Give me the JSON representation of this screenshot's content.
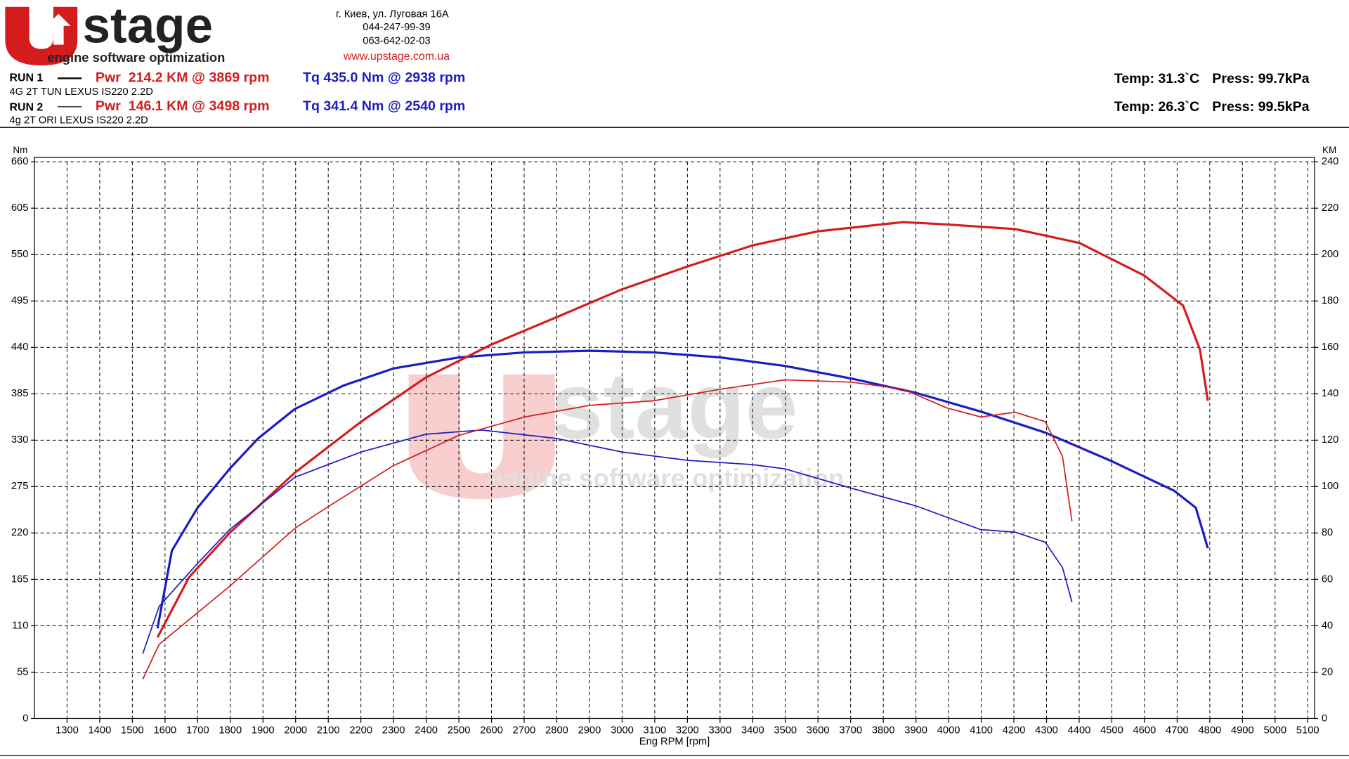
{
  "header": {
    "logo": "stage",
    "tagline": "engine software optimization",
    "address": "г. Киев, ул. Луговая 16А",
    "phone1": "044-247-99-39",
    "phone2": "063-642-02-03",
    "website": "www.upstage.com.ua"
  },
  "runs": [
    {
      "label": "RUN 1",
      "pwr": "Pwr  214.2 KM @ 3869 rpm",
      "tq": "Tq 435.0 Nm @ 2938 rpm",
      "car": "4G 2T TUN LEXUS IS220 2.2D",
      "temp": "Temp: 31.3`C",
      "press": "Press: 99.7kPa"
    },
    {
      "label": "RUN 2",
      "pwr": "Pwr  146.1 KM @ 3498 rpm",
      "tq": "Tq 341.4 Nm @ 2540 rpm",
      "car": "4g 2T ORI LEXUS IS220 2.2D",
      "temp": "Temp: 26.3`C",
      "press": "Press: 99.5kPa"
    }
  ],
  "chart_data": {
    "type": "line",
    "x_label": "Eng RPM [rpm]",
    "y_label": "Nm",
    "y2_label": "KM",
    "grid": true,
    "xlim": [
      1200,
      5121
    ],
    "xticks": [
      1300,
      1400,
      1500,
      1600,
      1700,
      1800,
      1900,
      2000,
      2100,
      2200,
      2300,
      2400,
      2500,
      2600,
      2700,
      2800,
      2900,
      3000,
      3100,
      3200,
      3300,
      3400,
      3500,
      3600,
      3700,
      3800,
      3900,
      4000,
      4100,
      4200,
      4300,
      4400,
      4500,
      4600,
      4700,
      4800,
      4900,
      5000,
      5100
    ],
    "ylim": [
      0,
      660
    ],
    "yticks": [
      0,
      55,
      110,
      165,
      220,
      275,
      330,
      385,
      440,
      495,
      550,
      605,
      660
    ],
    "y2lim": [
      0,
      240
    ],
    "y2ticks": [
      0,
      20,
      40,
      60,
      80,
      100,
      120,
      140,
      160,
      180,
      200,
      220,
      240
    ],
    "series": [
      {
        "color": "#1c1cc4",
        "line_width": 2.6,
        "axis": "y",
        "x": [
          1577,
          1621,
          1700,
          1798,
          1885,
          1998,
          2148,
          2299,
          2499,
          2702,
          2900,
          3097,
          3303,
          3498,
          3703,
          3901,
          4098,
          4296,
          4494,
          4691,
          4757,
          4794
        ],
        "values": [
          107,
          199,
          250,
          296,
          332,
          367,
          395,
          415,
          428,
          434,
          436,
          434,
          428,
          418,
          403,
          386,
          364,
          339,
          306,
          270,
          250,
          202
        ]
      },
      {
        "color": "#d41c1c",
        "line_width": 2.6,
        "axis": "y2",
        "x": [
          1577,
          1674,
          1798,
          1998,
          2201,
          2399,
          2596,
          2799,
          2999,
          3203,
          3400,
          3598,
          3795,
          3861,
          3993,
          4204,
          4401,
          4599,
          4718,
          4770,
          4794
        ],
        "values": [
          35,
          61,
          80,
          106,
          128,
          147,
          161,
          173,
          185,
          195,
          204,
          210,
          213,
          214,
          213,
          211,
          205,
          191,
          178,
          159,
          137
        ]
      },
      {
        "color": "#1c1cc4",
        "line_width": 1.4,
        "axis": "y",
        "x": [
          1532,
          1582,
          1700,
          1798,
          1998,
          2201,
          2399,
          2570,
          2799,
          2999,
          3203,
          3400,
          3498,
          3703,
          3901,
          4098,
          4204,
          4296,
          4349,
          4378
        ],
        "values": [
          77,
          133,
          184,
          224,
          286,
          316,
          337,
          342,
          332,
          316,
          306,
          301,
          296,
          273,
          252,
          224,
          221,
          209,
          179,
          138
        ]
      },
      {
        "color": "#d41c1c",
        "line_width": 1.4,
        "axis": "y2",
        "x": [
          1532,
          1582,
          1798,
          1998,
          2096,
          2299,
          2499,
          2702,
          2900,
          3097,
          3303,
          3498,
          3703,
          3861,
          3993,
          4098,
          4204,
          4296,
          4349,
          4378
        ],
        "values": [
          17,
          32,
          57,
          82,
          91,
          109,
          122,
          130,
          135,
          137,
          142,
          146,
          145,
          142,
          134,
          130,
          132,
          128,
          113,
          85
        ]
      }
    ]
  }
}
